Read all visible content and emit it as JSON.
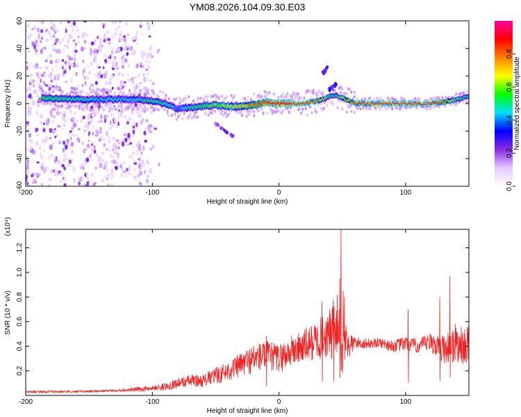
{
  "title": "YM08.2026.104.09.30.E03",
  "chart_data": [
    {
      "type": "heatmap",
      "xlabel": "Height of straight line (km)",
      "ylabel": "Frequency (Hz)",
      "xlim": [
        -200,
        150
      ],
      "ylim": [
        -60,
        60
      ],
      "x_ticks": [
        -200,
        -100,
        0,
        100
      ],
      "y_ticks": [
        -60,
        -40,
        -20,
        0,
        20,
        40,
        60
      ],
      "colorbar": {
        "label": "Normalized spectral amplitude",
        "range": [
          0.0,
          1.0
        ],
        "ticks": [
          0.0,
          0.2,
          0.4,
          0.6,
          0.8
        ],
        "colormap": [
          "#ffffff",
          "#e6c8ff",
          "#8a2be2",
          "#0000ff",
          "#00e0ff",
          "#00ff00",
          "#ffff00",
          "#ff8000",
          "#ff0000",
          "#ff00a0"
        ]
      },
      "ridge": {
        "description_points_x": [
          -185,
          -160,
          -140,
          -120,
          -100,
          -90,
          -80,
          -70,
          -60,
          -50,
          -40,
          -30,
          -20,
          -10,
          0,
          10,
          20,
          30,
          35,
          40,
          45,
          50,
          60,
          80,
          100,
          120,
          130,
          140,
          150
        ],
        "center_freq_hz": [
          4,
          3,
          3,
          3,
          2,
          0,
          -4,
          -3,
          -2,
          -1,
          -2,
          -2,
          -1,
          1,
          0,
          0,
          0,
          2,
          3,
          5,
          6,
          4,
          0,
          0,
          0,
          0,
          1,
          3,
          5
        ],
        "peak_amplitude": [
          0.55,
          0.5,
          0.45,
          0.45,
          0.5,
          0.5,
          0.4,
          0.5,
          0.55,
          0.6,
          0.65,
          0.7,
          0.8,
          0.9,
          0.95,
          0.95,
          0.95,
          0.85,
          0.7,
          0.55,
          0.5,
          0.7,
          0.9,
          0.95,
          0.95,
          0.95,
          0.85,
          0.6,
          0.5
        ]
      },
      "side_features": [
        {
          "x": [
            -50,
            -35
          ],
          "freq_hz": [
            -15,
            -24
          ],
          "amplitude": 0.25
        },
        {
          "x": [
            35,
            38
          ],
          "freq_hz": [
            22,
            26
          ],
          "amplitude": 0.3
        },
        {
          "x": [
            40,
            45
          ],
          "freq_hz": [
            10,
            14
          ],
          "amplitude": 0.35
        }
      ],
      "noise_region_x": [
        -200,
        -100
      ]
    },
    {
      "type": "line",
      "xlabel": "Height of straight line (km)",
      "ylabel": "SNR (10 * v/v)",
      "y_multiplier_label": "(x10⁴)",
      "xlim": [
        -200,
        150
      ],
      "ylim": [
        0,
        1.35
      ],
      "x_ticks": [
        -200,
        -100,
        0,
        100
      ],
      "y_ticks": [
        0.2,
        0.4,
        0.6,
        0.8,
        1.0,
        1.2
      ],
      "color": "#ff0000",
      "series": [
        {
          "x": [
            -200,
            -160,
            -130,
            -110,
            -100,
            -90,
            -80,
            -70,
            -60,
            -50,
            -40,
            -30,
            -20,
            -10,
            0,
            10,
            20,
            30,
            40,
            45,
            50,
            55,
            60,
            70,
            80,
            90,
            100,
            110,
            120,
            130,
            140,
            145,
            150
          ],
          "values": [
            0.03,
            0.03,
            0.04,
            0.05,
            0.06,
            0.07,
            0.1,
            0.12,
            0.12,
            0.16,
            0.2,
            0.25,
            0.3,
            0.33,
            0.3,
            0.36,
            0.4,
            0.45,
            0.5,
            0.5,
            0.55,
            0.4,
            0.43,
            0.42,
            0.43,
            0.4,
            0.42,
            0.4,
            0.43,
            0.38,
            0.42,
            0.4,
            0.42
          ],
          "spread": [
            0.01,
            0.01,
            0.01,
            0.02,
            0.02,
            0.03,
            0.04,
            0.05,
            0.05,
            0.07,
            0.08,
            0.1,
            0.12,
            0.12,
            0.12,
            0.13,
            0.14,
            0.16,
            0.2,
            0.3,
            0.4,
            0.12,
            0.05,
            0.04,
            0.04,
            0.05,
            0.06,
            0.06,
            0.08,
            0.12,
            0.18,
            0.15,
            0.15
          ]
        }
      ],
      "peaks": [
        {
          "x": 49,
          "value": 1.35
        },
        {
          "x": 48,
          "value": 0.95
        },
        {
          "x": 34,
          "value": 0.76
        },
        {
          "x": 43,
          "value": 0.78
        },
        {
          "x": 135,
          "value": 0.97
        },
        {
          "x": 127,
          "value": 0.8
        },
        {
          "x": 102,
          "value": 0.7
        },
        {
          "x": -10,
          "value": 0.48
        }
      ]
    }
  ]
}
